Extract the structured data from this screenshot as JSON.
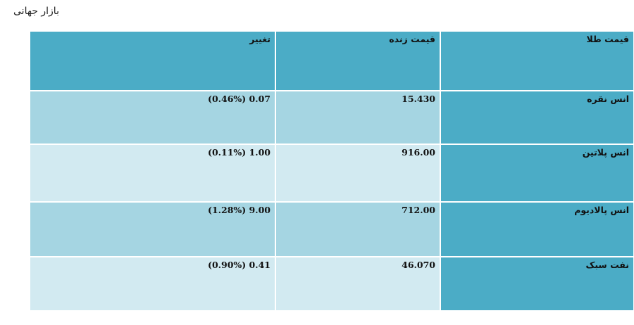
{
  "page": {
    "title": "بازار جهانی"
  },
  "table": {
    "headers": {
      "name": "قیمت طلا",
      "price": "قیمت زنده",
      "change": "تغییر"
    },
    "rows": [
      {
        "name": "انس نقره",
        "price": "15.430",
        "change": "(0.46%) 0.07"
      },
      {
        "name": "انس پلاتین",
        "price": "916.00",
        "change": "(0.11%) 1.00"
      },
      {
        "name": "انس پالادیوم",
        "price": "712.00",
        "change": "(1.28%) 9.00"
      },
      {
        "name": "نفت سبک",
        "price": "46.070",
        "change": "(0.90%) 0.41"
      }
    ]
  },
  "colors": {
    "header_bg": "#4bacc6",
    "row_dark": "#a5d5e2",
    "row_light": "#d2eaf1"
  }
}
